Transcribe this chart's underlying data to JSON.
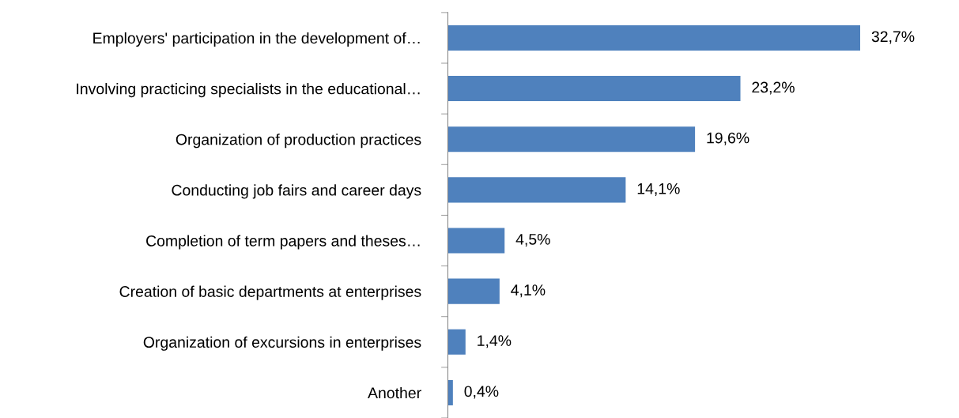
{
  "chart_data": {
    "type": "bar",
    "orientation": "horizontal",
    "categories": [
      "Employers' participation in the development of…",
      "Involving practicing specialists in the educational…",
      "Organization of production practices",
      "Conducting job fairs and career days",
      "Completion of term papers and theses…",
      "Creation of basic departments at enterprises",
      "Organization of excursions in enterprises",
      "Another"
    ],
    "values": [
      32.7,
      23.2,
      19.6,
      14.1,
      4.5,
      4.1,
      1.4,
      0.4
    ],
    "value_labels": [
      "32,7%",
      "23,2%",
      "19,6%",
      "14,1%",
      "4,5%",
      "4,1%",
      "1,4%",
      "0,4%"
    ],
    "color": "#4f81bd",
    "grid": false,
    "legend": false
  }
}
